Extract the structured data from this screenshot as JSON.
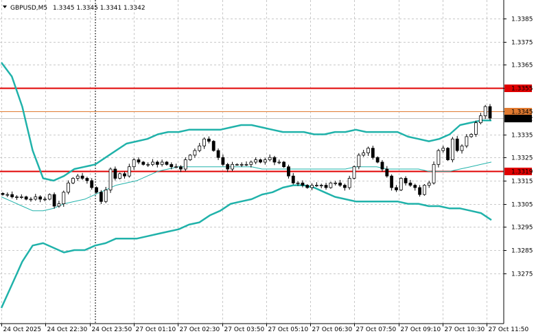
{
  "header": {
    "symbol": "GBPUSD,M5",
    "ohlc": "1.3345 1.3345 1.3341 1.3342",
    "menu_icon": "triangle-down-icon"
  },
  "chart_data": {
    "type": "candlestick",
    "symbol": "GBPUSD",
    "timeframe": "M5",
    "ylim": [
      1.327,
      1.3391
    ],
    "y_ticks": [
      "1.3385",
      "1.3375",
      "1.3365",
      "1.3355",
      "1.3345",
      "1.3335",
      "1.3325",
      "1.3315",
      "1.3305",
      "1.3295",
      "1.3285",
      "1.3275"
    ],
    "x_ticks": [
      "24 Oct 2025",
      "24 Oct 22:30",
      "24 Oct 23:50",
      "27 Oct 01:10",
      "27 Oct 02:30",
      "27 Oct 03:50",
      "27 Oct 05:10",
      "27 Oct 06:30",
      "27 Oct 07:50",
      "27 Oct 09:10",
      "27 Oct 10:30",
      "27 Oct 11:50"
    ],
    "current_price": "1.3342",
    "grid": true,
    "levels": [
      {
        "label": "1.3355",
        "value": 1.3355,
        "color": "#e00000"
      },
      {
        "label": "1.3345",
        "value": 1.3345,
        "color": "#e07a30"
      },
      {
        "label": "1.3319",
        "value": 1.3319,
        "color": "#e00000"
      }
    ],
    "closes": [
      1.3309,
      1.3309,
      1.3308,
      1.3308,
      1.3308,
      1.3307,
      1.3307,
      1.3308,
      1.3307,
      1.3307,
      1.3309,
      1.3304,
      1.3305,
      1.331,
      1.3314,
      1.3316,
      1.3317,
      1.3316,
      1.3315,
      1.3312,
      1.331,
      1.3306,
      1.3311,
      1.332,
      1.3316,
      1.3318,
      1.3317,
      1.3321,
      1.3324,
      1.3323,
      1.3322,
      1.3322,
      1.3323,
      1.3322,
      1.3323,
      1.3322,
      1.3321,
      1.3321,
      1.332,
      1.3324,
      1.3326,
      1.3328,
      1.333,
      1.3333,
      1.3332,
      1.3328,
      1.3325,
      1.3322,
      1.332,
      1.3322,
      1.3322,
      1.3322,
      1.3322,
      1.3323,
      1.3324,
      1.3323,
      1.3324,
      1.3325,
      1.3323,
      1.3323,
      1.3321,
      1.3317,
      1.3314,
      1.3314,
      1.3313,
      1.3312,
      1.3313,
      1.3313,
      1.3313,
      1.3312,
      1.3314,
      1.3314,
      1.3313,
      1.3312,
      1.3316,
      1.3321,
      1.3326,
      1.3327,
      1.3329,
      1.3325,
      1.3323,
      1.332,
      1.3317,
      1.3312,
      1.3311,
      1.3316,
      1.3314,
      1.3313,
      1.3312,
      1.3309,
      1.3313,
      1.3314,
      1.3322,
      1.3328,
      1.3329,
      1.3324,
      1.3333,
      1.3328,
      1.333,
      1.3334,
      1.3335,
      1.334,
      1.3343,
      1.3347,
      1.3342
    ],
    "bollinger": {
      "upper": [
        1.3366,
        1.336,
        1.3347,
        1.3328,
        1.3316,
        1.3315,
        1.3317,
        1.332,
        1.3321,
        1.3322,
        1.3325,
        1.3328,
        1.3331,
        1.3332,
        1.3333,
        1.3335,
        1.3336,
        1.3336,
        1.3337,
        1.3337,
        1.3337,
        1.3337,
        1.3338,
        1.3339,
        1.3339,
        1.3338,
        1.3337,
        1.3336,
        1.3336,
        1.3336,
        1.3335,
        1.3335,
        1.3336,
        1.3336,
        1.3337,
        1.3336,
        1.3336,
        1.3336,
        1.3336,
        1.3334,
        1.3333,
        1.3332,
        1.3333,
        1.3335,
        1.3339,
        1.334,
        1.3341,
        1.3341
      ],
      "middle": [
        1.3308,
        1.3306,
        1.3304,
        1.3302,
        1.3302,
        1.3303,
        1.3305,
        1.3306,
        1.3307,
        1.3309,
        1.3311,
        1.3313,
        1.3314,
        1.3315,
        1.3317,
        1.3319,
        1.332,
        1.3321,
        1.3321,
        1.3321,
        1.3321,
        1.3321,
        1.3321,
        1.3321,
        1.3321,
        1.332,
        1.332,
        1.332,
        1.332,
        1.332,
        1.332,
        1.332,
        1.332,
        1.332,
        1.3321,
        1.3321,
        1.3321,
        1.332,
        1.332,
        1.332,
        1.332,
        1.3319,
        1.3319,
        1.3319,
        1.332,
        1.3321,
        1.3322,
        1.3323
      ],
      "lower": [
        1.326,
        1.327,
        1.328,
        1.3287,
        1.3288,
        1.3286,
        1.3284,
        1.3285,
        1.3285,
        1.3287,
        1.3288,
        1.329,
        1.329,
        1.329,
        1.3291,
        1.3292,
        1.3293,
        1.3294,
        1.3296,
        1.3297,
        1.33,
        1.3302,
        1.3305,
        1.3306,
        1.3307,
        1.3309,
        1.331,
        1.3312,
        1.3313,
        1.3313,
        1.3312,
        1.331,
        1.3308,
        1.3307,
        1.3306,
        1.3306,
        1.3306,
        1.3306,
        1.3306,
        1.3305,
        1.3305,
        1.3304,
        1.3304,
        1.3303,
        1.3303,
        1.3302,
        1.3301,
        1.3298
      ]
    }
  }
}
